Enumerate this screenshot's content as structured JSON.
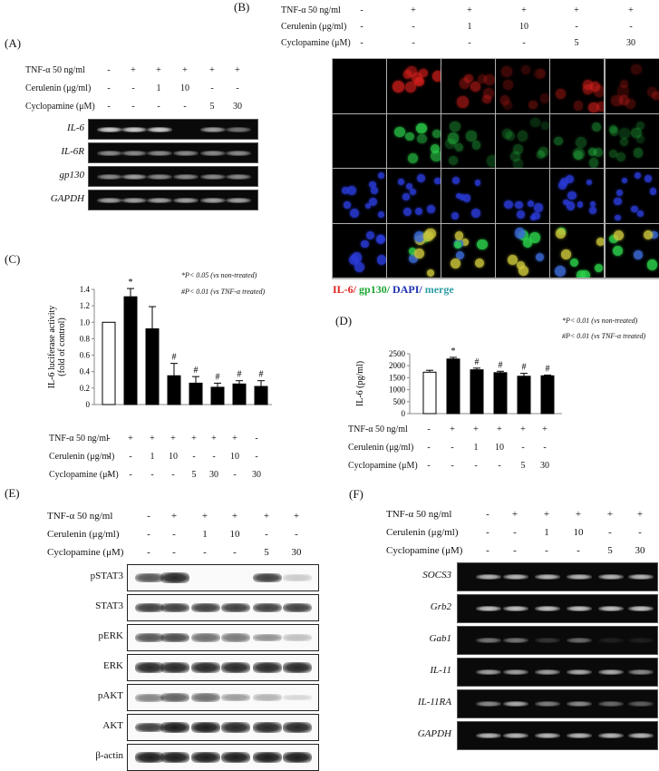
{
  "panels": {
    "A": {
      "letter": "(A)",
      "conditions": [
        {
          "label": "TNF-α 50 ng/ml",
          "values": [
            "-",
            "+",
            "+",
            "+",
            "+",
            "+"
          ]
        },
        {
          "label": "Cerulenin (μg/ml)",
          "values": [
            "-",
            "-",
            "1",
            "10",
            "-",
            "-"
          ]
        },
        {
          "label": "Cyclopamine (μM)",
          "values": [
            "-",
            "-",
            "-",
            "-",
            "5",
            "30"
          ]
        }
      ],
      "gels": [
        {
          "label": "IL-6",
          "intensity": [
            0.9,
            0.9,
            0.9,
            0.0,
            0.7,
            0.5
          ]
        },
        {
          "label": "IL-6R",
          "intensity": [
            0.6,
            0.6,
            0.6,
            0.6,
            0.6,
            0.6
          ]
        },
        {
          "label": "gp130",
          "intensity": [
            0.6,
            0.7,
            0.6,
            0.6,
            0.6,
            0.6
          ]
        },
        {
          "label": "GAPDH",
          "intensity": [
            0.7,
            0.7,
            0.7,
            0.7,
            0.7,
            0.7
          ]
        }
      ]
    },
    "B": {
      "letter": "(B)",
      "conditions": [
        {
          "label": "TNF-α 50 ng/ml",
          "values": [
            "-",
            "+",
            "+",
            "+",
            "+",
            "+"
          ]
        },
        {
          "label": "Cerulenin (μg/ml)",
          "values": [
            "-",
            "-",
            "1",
            "10",
            "-",
            "-"
          ]
        },
        {
          "label": "Cyclopamine (μM)",
          "values": [
            "-",
            "-",
            "-",
            "-",
            "5",
            "30"
          ]
        }
      ],
      "legend": [
        {
          "text": "IL-6/",
          "color": "#e0201e"
        },
        {
          "text": "gp130/",
          "color": "#1aa532"
        },
        {
          "text": "DAPI/",
          "color": "#1a2fb0"
        },
        {
          "text": "merge",
          "color": "#2f9ea6"
        }
      ]
    },
    "C": {
      "letter": "(C)",
      "notes": [
        "*P< 0.05 (vs non-treated)",
        "#P< 0.01 (vs TNF-α treated)"
      ],
      "conditions": [
        {
          "label": "TNF-α 50 ng/ml",
          "values": [
            "-",
            "+",
            "+",
            "+",
            "+",
            "+",
            "+",
            "-"
          ]
        },
        {
          "label": "Cerulenin (μg/ml)",
          "values": [
            "-",
            "-",
            "1",
            "10",
            "-",
            "-",
            "10",
            "-"
          ]
        },
        {
          "label": "Cyclopamine (μM)",
          "values": [
            "-",
            "-",
            "-",
            "-",
            "5",
            "30",
            "-",
            "30"
          ]
        }
      ]
    },
    "D": {
      "letter": "(D)",
      "notes": [
        "*P< 0.01 (vs non-treated)",
        "#P< 0.01 (vs TNF-α treated)"
      ],
      "conditions": [
        {
          "label": "TNF-α 50 ng/ml",
          "values": [
            "-",
            "+",
            "+",
            "+",
            "+",
            "+"
          ]
        },
        {
          "label": "Cerulenin (μg/ml)",
          "values": [
            "-",
            "-",
            "1",
            "10",
            "-",
            "-"
          ]
        },
        {
          "label": "Cyclopamine (μM)",
          "values": [
            "-",
            "-",
            "-",
            "-",
            "5",
            "30"
          ]
        }
      ]
    },
    "E": {
      "letter": "(E)",
      "conditions": [
        {
          "label": "TNF-α 50 ng/ml",
          "values": [
            "-",
            "+",
            "+",
            "+",
            "+",
            "+"
          ]
        },
        {
          "label": "Cerulenin (μg/ml)",
          "values": [
            "-",
            "-",
            "1",
            "10",
            "-",
            "-"
          ]
        },
        {
          "label": "Cyclopamine (μM)",
          "values": [
            "-",
            "-",
            "-",
            "-",
            "5",
            "30"
          ]
        }
      ],
      "blots": [
        {
          "label": "pSTAT3",
          "intensity": [
            0.7,
            0.9,
            0.05,
            0.05,
            0.8,
            0.2
          ]
        },
        {
          "label": "STAT3",
          "intensity": [
            0.8,
            0.8,
            0.8,
            0.8,
            0.8,
            0.8
          ]
        },
        {
          "label": "pERK",
          "intensity": [
            0.7,
            0.75,
            0.6,
            0.55,
            0.45,
            0.25
          ]
        },
        {
          "label": "ERK",
          "intensity": [
            0.9,
            0.9,
            0.9,
            0.9,
            0.9,
            0.9
          ]
        },
        {
          "label": "pAKT",
          "intensity": [
            0.5,
            0.65,
            0.6,
            0.4,
            0.3,
            0.15
          ]
        },
        {
          "label": "AKT",
          "intensity": [
            0.8,
            0.95,
            0.95,
            0.9,
            0.9,
            0.9
          ]
        },
        {
          "label": "β-actin",
          "intensity": [
            0.95,
            0.95,
            0.95,
            0.95,
            0.95,
            0.95
          ]
        }
      ]
    },
    "F": {
      "letter": "(F)",
      "conditions": [
        {
          "label": "TNF-α 50 ng/ml",
          "values": [
            "-",
            "+",
            "+",
            "+",
            "+",
            "+"
          ]
        },
        {
          "label": "Cerulenin (μg/ml)",
          "values": [
            "-",
            "-",
            "1",
            "10",
            "-",
            "-"
          ]
        },
        {
          "label": "Cyclopamine (μM)",
          "values": [
            "-",
            "-",
            "-",
            "-",
            "5",
            "30"
          ]
        }
      ],
      "gels": [
        {
          "label": "SOCS3",
          "intensity": [
            0.8,
            0.8,
            0.8,
            0.8,
            0.8,
            0.8
          ]
        },
        {
          "label": "Grb2",
          "intensity": [
            0.85,
            0.85,
            0.85,
            0.85,
            0.85,
            0.85
          ]
        },
        {
          "label": "Gab1",
          "intensity": [
            0.5,
            0.5,
            0.2,
            0.45,
            0.1,
            0.1
          ]
        },
        {
          "label": "IL-11",
          "intensity": [
            0.7,
            0.7,
            0.7,
            0.75,
            0.75,
            0.6
          ]
        },
        {
          "label": "IL-11RA",
          "intensity": [
            0.6,
            0.75,
            0.55,
            0.6,
            0.45,
            0.4
          ]
        },
        {
          "label": "GAPDH",
          "intensity": [
            0.8,
            0.8,
            0.8,
            0.8,
            0.8,
            0.8
          ]
        }
      ]
    }
  },
  "chart_data": [
    {
      "type": "bar",
      "panel": "C",
      "ylabel": "IL-6 luciferase activity (fold of control)",
      "ylim": [
        0,
        1.4
      ],
      "yticks": [
        "0",
        "0.2",
        "0.4",
        "0.6",
        "0.8",
        "1.0",
        "1.2",
        "1.4"
      ],
      "values": [
        1.0,
        1.31,
        0.92,
        0.35,
        0.26,
        0.21,
        0.25,
        0.22
      ],
      "errors": [
        0.0,
        0.1,
        0.27,
        0.15,
        0.08,
        0.05,
        0.04,
        0.07
      ],
      "marks": [
        "",
        "*",
        "",
        "#",
        "#",
        "#",
        "#",
        "#"
      ],
      "fills": [
        "#ffffff",
        "#000000",
        "#000000",
        "#000000",
        "#000000",
        "#000000",
        "#000000",
        "#000000"
      ]
    },
    {
      "type": "bar",
      "panel": "D",
      "ylabel": "IL-6 (pg/ml)",
      "ylim": [
        0,
        2500
      ],
      "yticks": [
        "0",
        "500",
        "1000",
        "1500",
        "2000",
        "2500"
      ],
      "values": [
        1730,
        2280,
        1830,
        1710,
        1560,
        1580
      ],
      "errors": [
        80,
        70,
        70,
        60,
        120,
        30
      ],
      "marks": [
        "",
        "*",
        "#",
        "#",
        "#",
        "#"
      ],
      "fills": [
        "#ffffff",
        "#000000",
        "#000000",
        "#000000",
        "#000000",
        "#000000"
      ]
    }
  ]
}
